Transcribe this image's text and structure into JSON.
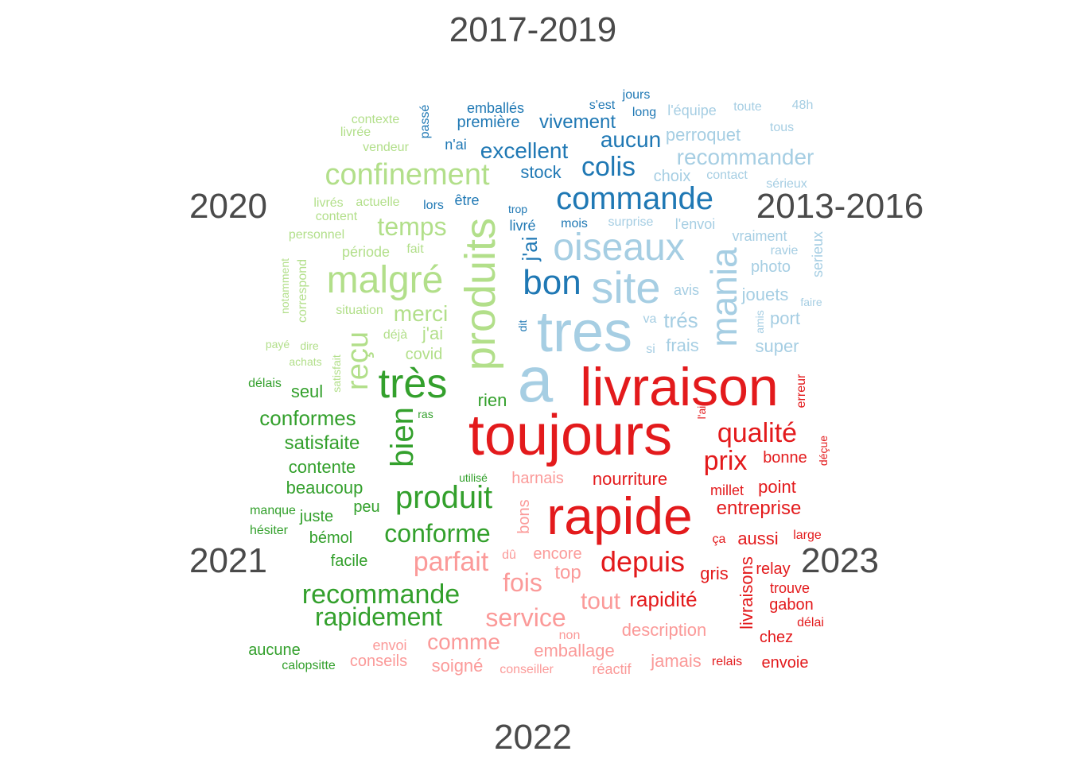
{
  "groups": [
    {
      "key": "g2017",
      "label": "2017-2019",
      "color": "#1f78b4"
    },
    {
      "key": "g2013",
      "label": "2013-2016",
      "color": "#a6cee3"
    },
    {
      "key": "g2020",
      "label": "2020",
      "color": "#b2df8a"
    },
    {
      "key": "g2021",
      "label": "2021",
      "color": "#33a02c"
    },
    {
      "key": "g2022",
      "label": "2022",
      "color": "#fb9a99"
    },
    {
      "key": "g2023",
      "label": "2023",
      "color": "#e31a1c"
    }
  ],
  "words": [
    {
      "t": "commande",
      "g": "g2017",
      "s": 40
    },
    {
      "t": "bon",
      "g": "g2017",
      "s": 44
    },
    {
      "t": "colis",
      "g": "g2017",
      "s": 34
    },
    {
      "t": "excellent",
      "g": "g2017",
      "s": 28
    },
    {
      "t": "aucun",
      "g": "g2017",
      "s": 28
    },
    {
      "t": "vivement",
      "g": "g2017",
      "s": 24
    },
    {
      "t": "première",
      "g": "g2017",
      "s": 20
    },
    {
      "t": "emballés",
      "g": "g2017",
      "s": 18
    },
    {
      "t": "s'est",
      "g": "g2017",
      "s": 16
    },
    {
      "t": "jours",
      "g": "g2017",
      "s": 16
    },
    {
      "t": "long",
      "g": "g2017",
      "s": 16
    },
    {
      "t": "passé",
      "g": "g2017",
      "s": 16
    },
    {
      "t": "n'ai",
      "g": "g2017",
      "s": 18
    },
    {
      "t": "stock",
      "g": "g2017",
      "s": 22
    },
    {
      "t": "être",
      "g": "g2017",
      "s": 18
    },
    {
      "t": "lors",
      "g": "g2017",
      "s": 16
    },
    {
      "t": "trop",
      "g": "g2017",
      "s": 14
    },
    {
      "t": "livré",
      "g": "g2017",
      "s": 18
    },
    {
      "t": "mois",
      "g": "g2017",
      "s": 16
    },
    {
      "t": "j'ai",
      "g": "g2017",
      "s": 26
    },
    {
      "t": "dit",
      "g": "g2017",
      "s": 14
    },
    {
      "t": "tres",
      "g": "g2013",
      "s": 72
    },
    {
      "t": "a",
      "g": "g2013",
      "s": 80
    },
    {
      "t": "site",
      "g": "g2013",
      "s": 56
    },
    {
      "t": "oiseaux",
      "g": "g2013",
      "s": 48
    },
    {
      "t": "mania",
      "g": "g2013",
      "s": 46
    },
    {
      "t": "recommander",
      "g": "g2013",
      "s": 28
    },
    {
      "t": "perroquet",
      "g": "g2013",
      "s": 22
    },
    {
      "t": "choix",
      "g": "g2013",
      "s": 20
    },
    {
      "t": "contact",
      "g": "g2013",
      "s": 16
    },
    {
      "t": "l'équipe",
      "g": "g2013",
      "s": 18
    },
    {
      "t": "toute",
      "g": "g2013",
      "s": 16
    },
    {
      "t": "48h",
      "g": "g2013",
      "s": 16
    },
    {
      "t": "tous",
      "g": "g2013",
      "s": 16
    },
    {
      "t": "sérieux",
      "g": "g2013",
      "s": 16
    },
    {
      "t": "surprise",
      "g": "g2013",
      "s": 16
    },
    {
      "t": "l'envoi",
      "g": "g2013",
      "s": 18
    },
    {
      "t": "vraiment",
      "g": "g2013",
      "s": 18
    },
    {
      "t": "ravie",
      "g": "g2013",
      "s": 16
    },
    {
      "t": "serieux",
      "g": "g2013",
      "s": 18
    },
    {
      "t": "photo",
      "g": "g2013",
      "s": 20
    },
    {
      "t": "avis",
      "g": "g2013",
      "s": 18
    },
    {
      "t": "jouets",
      "g": "g2013",
      "s": 22
    },
    {
      "t": "faire",
      "g": "g2013",
      "s": 14
    },
    {
      "t": "amis",
      "g": "g2013",
      "s": 14
    },
    {
      "t": "port",
      "g": "g2013",
      "s": 22
    },
    {
      "t": "trés",
      "g": "g2013",
      "s": 26
    },
    {
      "t": "va",
      "g": "g2013",
      "s": 16
    },
    {
      "t": "frais",
      "g": "g2013",
      "s": 22
    },
    {
      "t": "si",
      "g": "g2013",
      "s": 16
    },
    {
      "t": "super",
      "g": "g2013",
      "s": 22
    },
    {
      "t": "confinement",
      "g": "g2020",
      "s": 38
    },
    {
      "t": "malgré",
      "g": "g2020",
      "s": 48
    },
    {
      "t": "produits",
      "g": "g2020",
      "s": 54
    },
    {
      "t": "reçu",
      "g": "g2020",
      "s": 38
    },
    {
      "t": "temps",
      "g": "g2020",
      "s": 32
    },
    {
      "t": "merci",
      "g": "g2020",
      "s": 28
    },
    {
      "t": "j'ai",
      "g": "g2020",
      "s": 22
    },
    {
      "t": "covid",
      "g": "g2020",
      "s": 20
    },
    {
      "t": "déjà",
      "g": "g2020",
      "s": 16
    },
    {
      "t": "contexte",
      "g": "g2020",
      "s": 16
    },
    {
      "t": "livrée",
      "g": "g2020",
      "s": 16
    },
    {
      "t": "vendeur",
      "g": "g2020",
      "s": 16
    },
    {
      "t": "livrés",
      "g": "g2020",
      "s": 16
    },
    {
      "t": "actuelle",
      "g": "g2020",
      "s": 16
    },
    {
      "t": "content",
      "g": "g2020",
      "s": 16
    },
    {
      "t": "personnel",
      "g": "g2020",
      "s": 16
    },
    {
      "t": "période",
      "g": "g2020",
      "s": 18
    },
    {
      "t": "fait",
      "g": "g2020",
      "s": 16
    },
    {
      "t": "notamment",
      "g": "g2020",
      "s": 14
    },
    {
      "t": "correspond",
      "g": "g2020",
      "s": 16
    },
    {
      "t": "situation",
      "g": "g2020",
      "s": 16
    },
    {
      "t": "payé",
      "g": "g2020",
      "s": 14
    },
    {
      "t": "dire",
      "g": "g2020",
      "s": 14
    },
    {
      "t": "achats",
      "g": "g2020",
      "s": 14
    },
    {
      "t": "satisfait",
      "g": "g2020",
      "s": 14
    },
    {
      "t": "très",
      "g": "g2021",
      "s": 52
    },
    {
      "t": "bien",
      "g": "g2021",
      "s": 40
    },
    {
      "t": "produit",
      "g": "g2021",
      "s": 40
    },
    {
      "t": "conforme",
      "g": "g2021",
      "s": 32
    },
    {
      "t": "conformes",
      "g": "g2021",
      "s": 26
    },
    {
      "t": "satisfaite",
      "g": "g2021",
      "s": 24
    },
    {
      "t": "contente",
      "g": "g2021",
      "s": 22
    },
    {
      "t": "beaucoup",
      "g": "g2021",
      "s": 22
    },
    {
      "t": "recommande",
      "g": "g2021",
      "s": 34
    },
    {
      "t": "rapidement",
      "g": "g2021",
      "s": 32
    },
    {
      "t": "seul",
      "g": "g2021",
      "s": 22
    },
    {
      "t": "délais",
      "g": "g2021",
      "s": 16
    },
    {
      "t": "rien",
      "g": "g2021",
      "s": 22
    },
    {
      "t": "ras",
      "g": "g2021",
      "s": 14
    },
    {
      "t": "utilisé",
      "g": "g2021",
      "s": 14
    },
    {
      "t": "manque",
      "g": "g2021",
      "s": 16
    },
    {
      "t": "juste",
      "g": "g2021",
      "s": 20
    },
    {
      "t": "peu",
      "g": "g2021",
      "s": 20
    },
    {
      "t": "hésiter",
      "g": "g2021",
      "s": 16
    },
    {
      "t": "bémol",
      "g": "g2021",
      "s": 20
    },
    {
      "t": "facile",
      "g": "g2021",
      "s": 20
    },
    {
      "t": "aucune",
      "g": "g2021",
      "s": 20
    },
    {
      "t": "calopsitte",
      "g": "g2021",
      "s": 16
    },
    {
      "t": "parfait",
      "g": "g2022",
      "s": 34
    },
    {
      "t": "service",
      "g": "g2022",
      "s": 32
    },
    {
      "t": "fois",
      "g": "g2022",
      "s": 32
    },
    {
      "t": "comme",
      "g": "g2022",
      "s": 28
    },
    {
      "t": "tout",
      "g": "g2022",
      "s": 30
    },
    {
      "t": "harnais",
      "g": "g2022",
      "s": 20
    },
    {
      "t": "bons",
      "g": "g2022",
      "s": 20
    },
    {
      "t": "dû",
      "g": "g2022",
      "s": 16
    },
    {
      "t": "encore",
      "g": "g2022",
      "s": 20
    },
    {
      "t": "top",
      "g": "g2022",
      "s": 24
    },
    {
      "t": "non",
      "g": "g2022",
      "s": 16
    },
    {
      "t": "envoi",
      "g": "g2022",
      "s": 18
    },
    {
      "t": "conseils",
      "g": "g2022",
      "s": 20
    },
    {
      "t": "soigné",
      "g": "g2022",
      "s": 22
    },
    {
      "t": "emballage",
      "g": "g2022",
      "s": 22
    },
    {
      "t": "conseiller",
      "g": "g2022",
      "s": 16
    },
    {
      "t": "réactif",
      "g": "g2022",
      "s": 18
    },
    {
      "t": "description",
      "g": "g2022",
      "s": 22
    },
    {
      "t": "jamais",
      "g": "g2022",
      "s": 22
    },
    {
      "t": "livraison",
      "g": "g2023",
      "s": 68
    },
    {
      "t": "toujours",
      "g": "g2023",
      "s": 72
    },
    {
      "t": "rapide",
      "g": "g2023",
      "s": 66
    },
    {
      "t": "qualité",
      "g": "g2023",
      "s": 34
    },
    {
      "t": "prix",
      "g": "g2023",
      "s": 34
    },
    {
      "t": "depuis",
      "g": "g2023",
      "s": 36
    },
    {
      "t": "nourriture",
      "g": "g2023",
      "s": 22
    },
    {
      "t": "entreprise",
      "g": "g2023",
      "s": 24
    },
    {
      "t": "bonne",
      "g": "g2023",
      "s": 20
    },
    {
      "t": "point",
      "g": "g2023",
      "s": 22
    },
    {
      "t": "millet",
      "g": "g2023",
      "s": 18
    },
    {
      "t": "aussi",
      "g": "g2023",
      "s": 22
    },
    {
      "t": "ça",
      "g": "g2023",
      "s": 16
    },
    {
      "t": "large",
      "g": "g2023",
      "s": 16
    },
    {
      "t": "gris",
      "g": "g2023",
      "s": 22
    },
    {
      "t": "relay",
      "g": "g2023",
      "s": 20
    },
    {
      "t": "rapidité",
      "g": "g2023",
      "s": 26
    },
    {
      "t": "livraisons",
      "g": "g2023",
      "s": 22
    },
    {
      "t": "trouve",
      "g": "g2023",
      "s": 18
    },
    {
      "t": "gabon",
      "g": "g2023",
      "s": 20
    },
    {
      "t": "délai",
      "g": "g2023",
      "s": 16
    },
    {
      "t": "chez",
      "g": "g2023",
      "s": 20
    },
    {
      "t": "relais",
      "g": "g2023",
      "s": 16
    },
    {
      "t": "envoie",
      "g": "g2023",
      "s": 20
    },
    {
      "t": "erreur",
      "g": "g2023",
      "s": 16
    },
    {
      "t": "déçue",
      "g": "g2023",
      "s": 14
    },
    {
      "t": "l'ai",
      "g": "g2023",
      "s": 14
    }
  ]
}
